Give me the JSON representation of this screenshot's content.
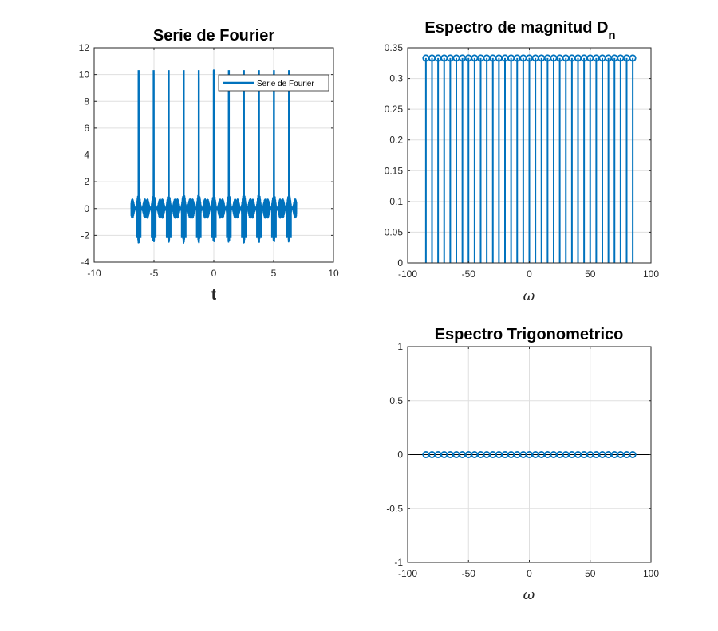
{
  "colors": {
    "series": "#0072BD",
    "grid": "#dfdfdf",
    "axis": "#262626"
  },
  "chart_data": [
    {
      "type": "line",
      "title": "Serie de Fourier",
      "xlabel": "t",
      "ylabel": "",
      "xlim": [
        -10,
        10
      ],
      "ylim": [
        -4,
        12
      ],
      "xticks": [
        -10,
        -5,
        0,
        5,
        10
      ],
      "yticks": [
        -4,
        -2,
        0,
        2,
        4,
        6,
        8,
        10,
        12
      ],
      "grid": true,
      "legend": {
        "placement": "top-right",
        "entries": [
          "Serie de Fourier"
        ]
      },
      "series": [
        {
          "name": "Serie de Fourier",
          "period": 1.2566,
          "x_range": [
            -6.9,
            6.9
          ],
          "peak": 10.33,
          "min": -2.2,
          "peak_x": [
            -6.2832,
            -5.0265,
            -3.7699,
            -2.5133,
            -1.2566,
            0,
            1.2566,
            2.5133,
            3.7699,
            5.0265,
            6.2832
          ]
        }
      ]
    },
    {
      "type": "stem",
      "title": "Espectro de magnitud D",
      "title_sub": "n",
      "xlabel": "ω",
      "ylabel": "",
      "xlim": [
        -100,
        100
      ],
      "ylim": [
        0,
        0.35
      ],
      "xticks": [
        -100,
        -50,
        0,
        50,
        100
      ],
      "yticks": [
        0,
        0.05,
        0.1,
        0.15,
        0.2,
        0.25,
        0.3,
        0.35
      ],
      "grid": true,
      "x": [
        -85,
        -80,
        -75,
        -70,
        -65,
        -60,
        -55,
        -50,
        -45,
        -40,
        -35,
        -30,
        -25,
        -20,
        -15,
        -10,
        -5,
        0,
        5,
        10,
        15,
        20,
        25,
        30,
        35,
        40,
        45,
        50,
        55,
        60,
        65,
        70,
        75,
        80,
        85
      ],
      "values": [
        0.3333,
        0.3333,
        0.3333,
        0.3333,
        0.3333,
        0.3333,
        0.3333,
        0.3333,
        0.3333,
        0.3333,
        0.3333,
        0.3333,
        0.3333,
        0.3333,
        0.3333,
        0.3333,
        0.3333,
        0.3333,
        0.3333,
        0.3333,
        0.3333,
        0.3333,
        0.3333,
        0.3333,
        0.3333,
        0.3333,
        0.3333,
        0.3333,
        0.3333,
        0.3333,
        0.3333,
        0.3333,
        0.3333,
        0.3333,
        0.3333
      ]
    },
    {
      "type": "stem",
      "title": "Espectro Trigonometrico",
      "xlabel": "ω",
      "ylabel": "",
      "xlim": [
        -100,
        100
      ],
      "ylim": [
        -1,
        1
      ],
      "xticks": [
        -100,
        -50,
        0,
        50,
        100
      ],
      "yticks": [
        -1,
        -0.5,
        0,
        0.5,
        1
      ],
      "grid": true,
      "baseline": 0,
      "x": [
        -85,
        -80,
        -75,
        -70,
        -65,
        -60,
        -55,
        -50,
        -45,
        -40,
        -35,
        -30,
        -25,
        -20,
        -15,
        -10,
        -5,
        0,
        5,
        10,
        15,
        20,
        25,
        30,
        35,
        40,
        45,
        50,
        55,
        60,
        65,
        70,
        75,
        80,
        85
      ],
      "values": [
        0,
        0,
        0,
        0,
        0,
        0,
        0,
        0,
        0,
        0,
        0,
        0,
        0,
        0,
        0,
        0,
        0,
        0,
        0,
        0,
        0,
        0,
        0,
        0,
        0,
        0,
        0,
        0,
        0,
        0,
        0,
        0,
        0,
        0,
        0
      ]
    }
  ]
}
